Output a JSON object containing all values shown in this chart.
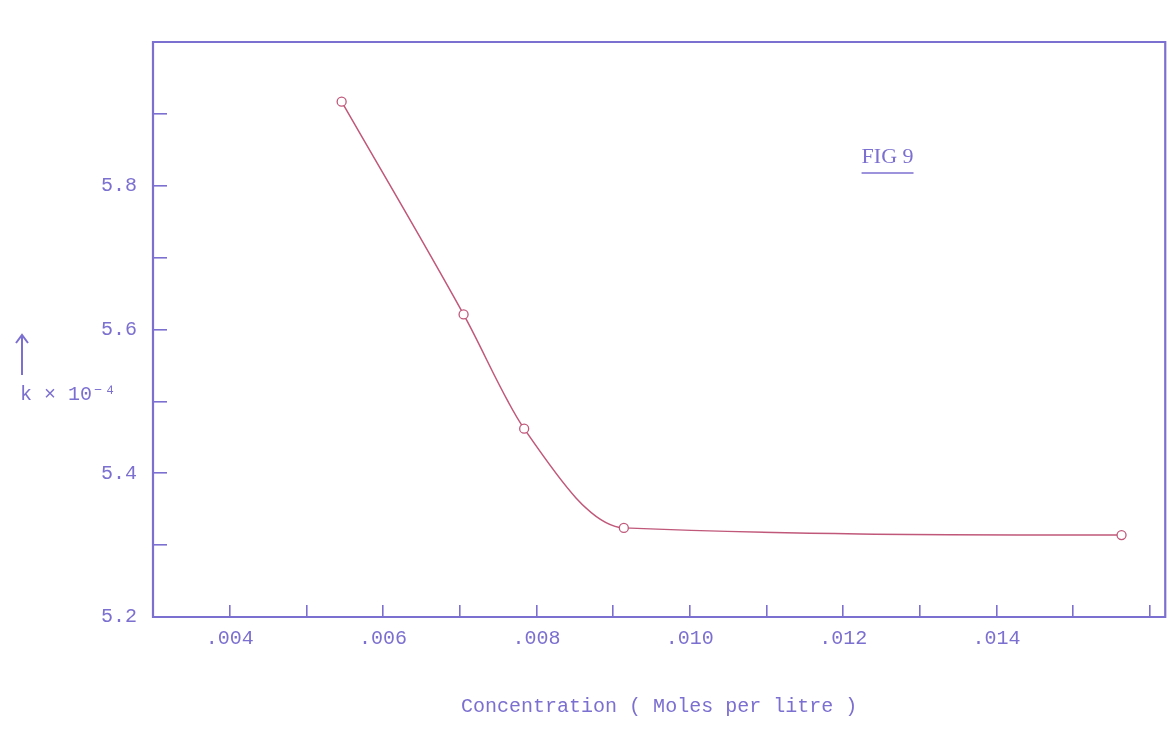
{
  "chart_data": {
    "type": "line",
    "xlabel": "Concentration ( Moles per litre )",
    "ylabel": "k × 10⁻⁴",
    "annotations": [
      "FIG 9"
    ],
    "x": [
      0.00546,
      0.00705,
      0.00784,
      0.00914,
      0.01563
    ],
    "series": [
      {
        "color": "#c0587a",
        "values": [
          5.917,
          5.621,
          5.462,
          5.324,
          5.314
        ]
      }
    ],
    "xlim": [
      0.003,
      0.0162
    ],
    "xticks": [
      {
        "value": 0.004,
        "label": ".004"
      },
      {
        "value": 0.005,
        "label": null
      },
      {
        "value": 0.006,
        "label": ".006"
      },
      {
        "value": 0.007,
        "label": null
      },
      {
        "value": 0.008,
        "label": ".008"
      },
      {
        "value": 0.009,
        "label": null
      },
      {
        "value": 0.01,
        "label": ".010"
      },
      {
        "value": 0.011,
        "label": null
      },
      {
        "value": 0.012,
        "label": ".012"
      },
      {
        "value": 0.013,
        "label": null
      },
      {
        "value": 0.014,
        "label": ".014"
      },
      {
        "value": 0.015,
        "label": null
      },
      {
        "value": 0.016,
        "label": null
      }
    ],
    "ylim": [
      5.2,
      6.0
    ],
    "yticks": [
      5.2,
      {
        "value": 5.3,
        "label": null
      },
      5.4,
      {
        "value": 5.5,
        "label": null
      },
      5.6,
      {
        "value": 5.7,
        "label": null
      },
      5.8,
      {
        "value": 5.9,
        "label": null
      }
    ],
    "marker": "circle",
    "line_style": "solid",
    "legend": false
  }
}
